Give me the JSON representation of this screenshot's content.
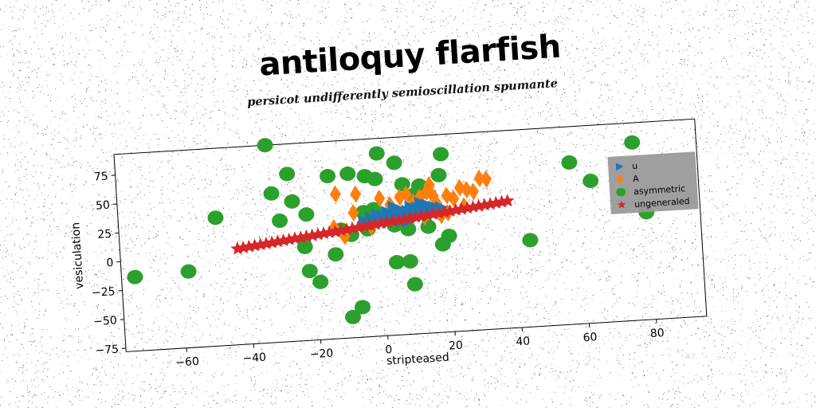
{
  "title": "antiloquy flarfish",
  "subtitle": "persicot undifferently semioscillation spumante",
  "chart_data": {
    "type": "scatter",
    "xlabel": "stripteased",
    "ylabel": "vesiculation",
    "xlim": [
      -78,
      95
    ],
    "ylim": [
      -78,
      93
    ],
    "xticks": [
      -60,
      -40,
      -20,
      0,
      20,
      40,
      60,
      80
    ],
    "yticks": [
      -75,
      -50,
      -25,
      0,
      25,
      50,
      75
    ],
    "grid": false,
    "legend_position": "right",
    "series": [
      {
        "name": "u",
        "marker": "triangle-right",
        "color": "#1f77b4",
        "points": [
          [
            -5,
            22
          ],
          [
            -3,
            25
          ],
          [
            -1,
            27
          ],
          [
            0,
            23
          ],
          [
            1,
            26
          ],
          [
            2,
            29
          ],
          [
            3,
            24
          ],
          [
            4,
            28
          ],
          [
            5,
            27
          ],
          [
            6,
            30
          ],
          [
            7,
            25
          ],
          [
            8,
            29
          ],
          [
            9,
            32
          ],
          [
            10,
            28
          ],
          [
            11,
            31
          ],
          [
            12,
            27
          ],
          [
            13,
            30
          ],
          [
            14,
            33
          ],
          [
            15,
            29
          ],
          [
            16,
            31
          ],
          [
            17,
            28
          ],
          [
            18,
            30
          ],
          [
            2,
            20
          ],
          [
            6,
            21
          ],
          [
            10,
            22
          ],
          [
            14,
            24
          ],
          [
            -2,
            19
          ],
          [
            4,
            33
          ],
          [
            12,
            35
          ],
          [
            8,
            20
          ]
        ]
      },
      {
        "name": "A",
        "marker": "diamond",
        "color": "#ff7f0e",
        "points": [
          [
            -13,
            47
          ],
          [
            -7,
            46
          ],
          [
            -14,
            18
          ],
          [
            -11,
            10
          ],
          [
            -3,
            17
          ],
          [
            1,
            24
          ],
          [
            3,
            35
          ],
          [
            6,
            41
          ],
          [
            8,
            43
          ],
          [
            10,
            36
          ],
          [
            12,
            40
          ],
          [
            14,
            44
          ],
          [
            15,
            50
          ],
          [
            16,
            40
          ],
          [
            17,
            33
          ],
          [
            20,
            40
          ],
          [
            22,
            37
          ],
          [
            24,
            46
          ],
          [
            26,
            44
          ],
          [
            28,
            42
          ],
          [
            30,
            53
          ],
          [
            32,
            52
          ],
          [
            25,
            30
          ],
          [
            20,
            25
          ],
          [
            5,
            28
          ],
          [
            9,
            25
          ],
          [
            -8,
            30
          ],
          [
            0,
            41
          ],
          [
            13,
            23
          ],
          [
            18,
            23
          ]
        ]
      },
      {
        "name": "asymmetric",
        "color": "#2ca02c",
        "marker": "circle",
        "points": [
          [
            -33,
            93
          ],
          [
            -32,
            51
          ],
          [
            -27,
            67
          ],
          [
            -30,
            27
          ],
          [
            -26,
            43
          ],
          [
            -22,
            31
          ],
          [
            -15,
            63
          ],
          [
            -9,
            64
          ],
          [
            -4,
            61
          ],
          [
            0,
            80
          ],
          [
            -1,
            58
          ],
          [
            5,
            71
          ],
          [
            7,
            52
          ],
          [
            10,
            42
          ],
          [
            12,
            50
          ],
          [
            18,
            58
          ],
          [
            19,
            76
          ],
          [
            14,
            14
          ],
          [
            20,
            5
          ],
          [
            18,
            -2
          ],
          [
            -23,
            3
          ],
          [
            -12,
            16
          ],
          [
            -9,
            11
          ],
          [
            -5,
            30
          ],
          [
            -2,
            32
          ],
          [
            -4,
            15
          ],
          [
            4,
            17
          ],
          [
            8,
            13
          ],
          [
            4,
            -15
          ],
          [
            8,
            -15
          ],
          [
            9,
            -35
          ],
          [
            -14,
            -5
          ],
          [
            -22,
            -18
          ],
          [
            -19,
            -28
          ],
          [
            -7,
            -52
          ],
          [
            -10,
            -60
          ],
          [
            -49,
            33
          ],
          [
            -58,
            -12
          ],
          [
            -74,
            -14
          ],
          [
            44,
            -3
          ],
          [
            57,
            62
          ],
          [
            63,
            45
          ],
          [
            76,
            76
          ],
          [
            79,
            15
          ]
        ]
      },
      {
        "name": "ungeneraled",
        "marker": "star",
        "color": "#d62728",
        "x_start": -43,
        "x_end": 38,
        "y_start": 5,
        "y_end": 32,
        "count": 48
      }
    ]
  }
}
